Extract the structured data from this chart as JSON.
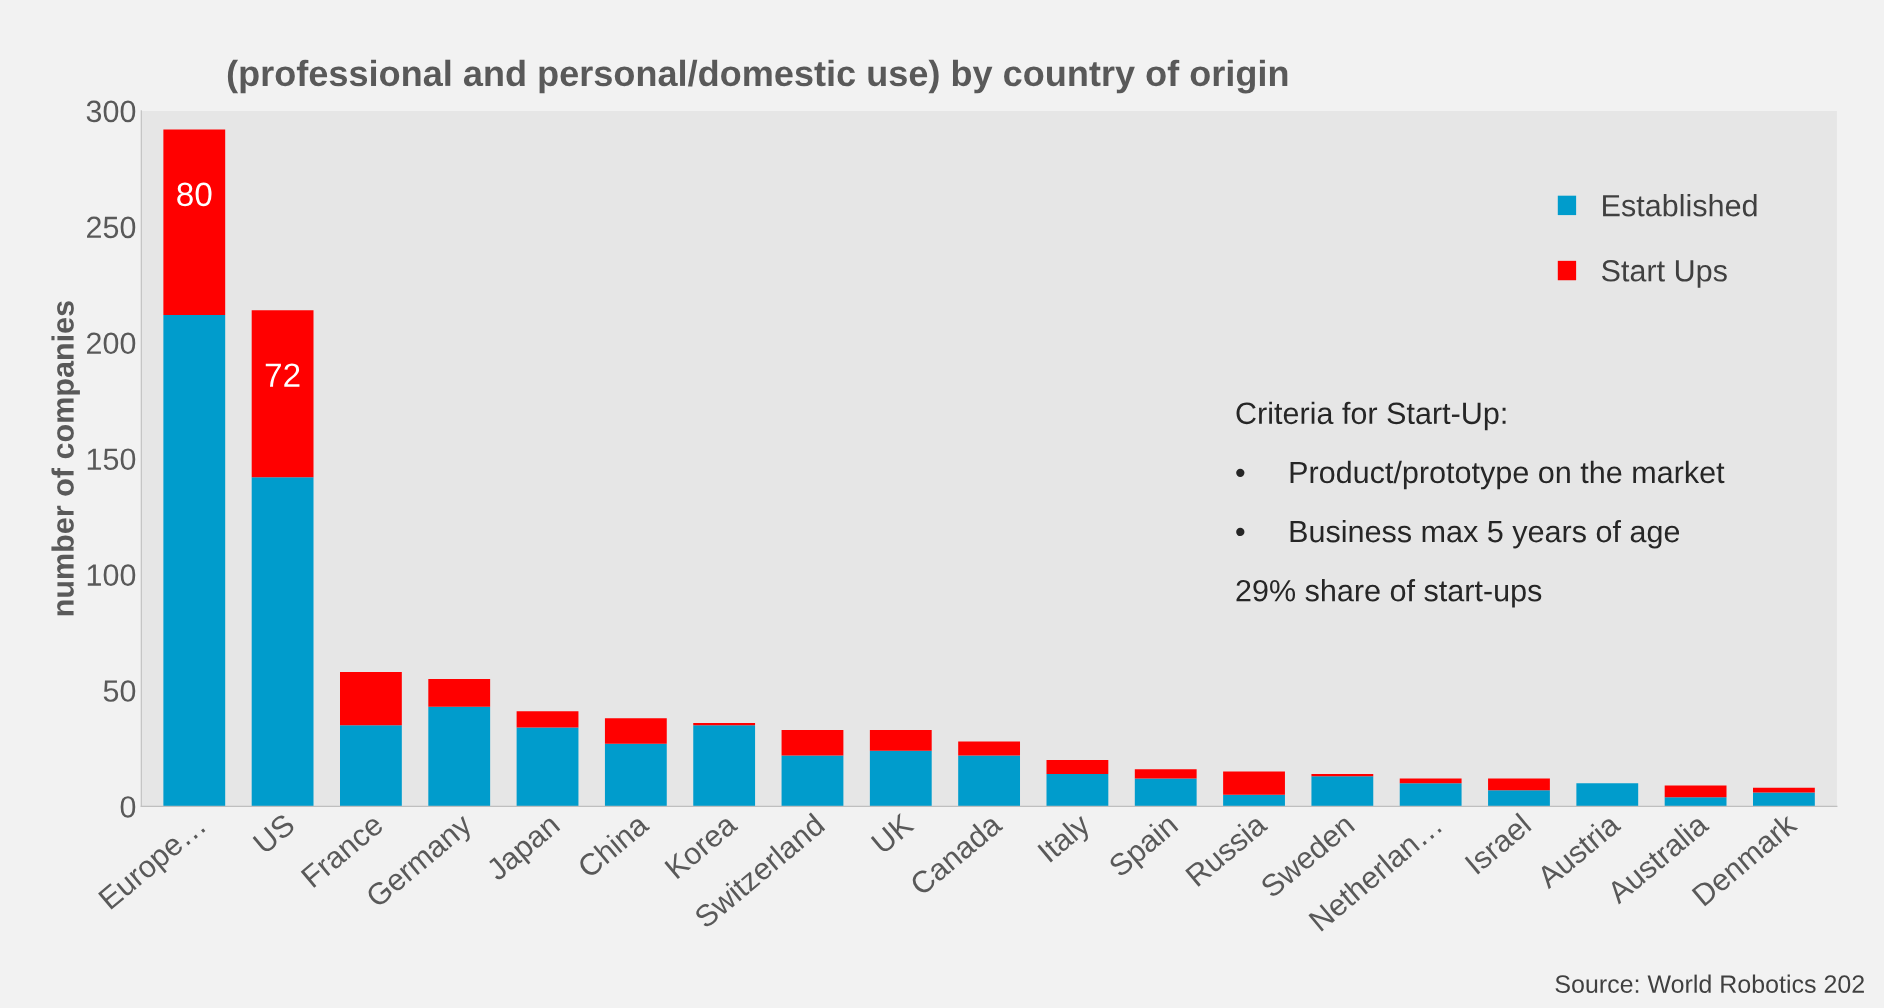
{
  "chart_data": {
    "type": "bar",
    "stacked": true,
    "title": "(professional and personal/domestic use) by country of origin",
    "ylabel": "number of companies",
    "categories": [
      "Europe…",
      "US",
      "France",
      "Germany",
      "Japan",
      "China",
      "Korea",
      "Switzerland",
      "UK",
      "Canada",
      "Italy",
      "Spain",
      "Russia",
      "Sweden",
      "Netherlan…",
      "Israel",
      "Austria",
      "Australia",
      "Denmark"
    ],
    "series": [
      {
        "name": "Established",
        "color": "#009ccc",
        "values": [
          212,
          142,
          35,
          43,
          34,
          27,
          35,
          22,
          24,
          22,
          14,
          12,
          5,
          13,
          10,
          7,
          10,
          4,
          6
        ]
      },
      {
        "name": "Start Ups",
        "color": "#ff0000",
        "values": [
          80,
          72,
          23,
          12,
          7,
          11,
          1,
          11,
          9,
          6,
          6,
          4,
          10,
          1,
          2,
          5,
          0,
          5,
          2
        ],
        "value_labels": [
          "80",
          "72",
          null,
          null,
          null,
          null,
          null,
          null,
          null,
          null,
          null,
          null,
          null,
          null,
          null,
          null,
          null,
          null,
          null
        ]
      }
    ],
    "ylim": [
      0,
      300
    ],
    "yticks": [
      0,
      50,
      100,
      150,
      200,
      250,
      300
    ],
    "legend": "top right",
    "annotations": [
      "Criteria for Start-Up:",
      "•     Product/prototype on the market",
      "•     Business max 5 years of age",
      "29% share of start-ups",
      "Source: World Robotics 202"
    ]
  }
}
